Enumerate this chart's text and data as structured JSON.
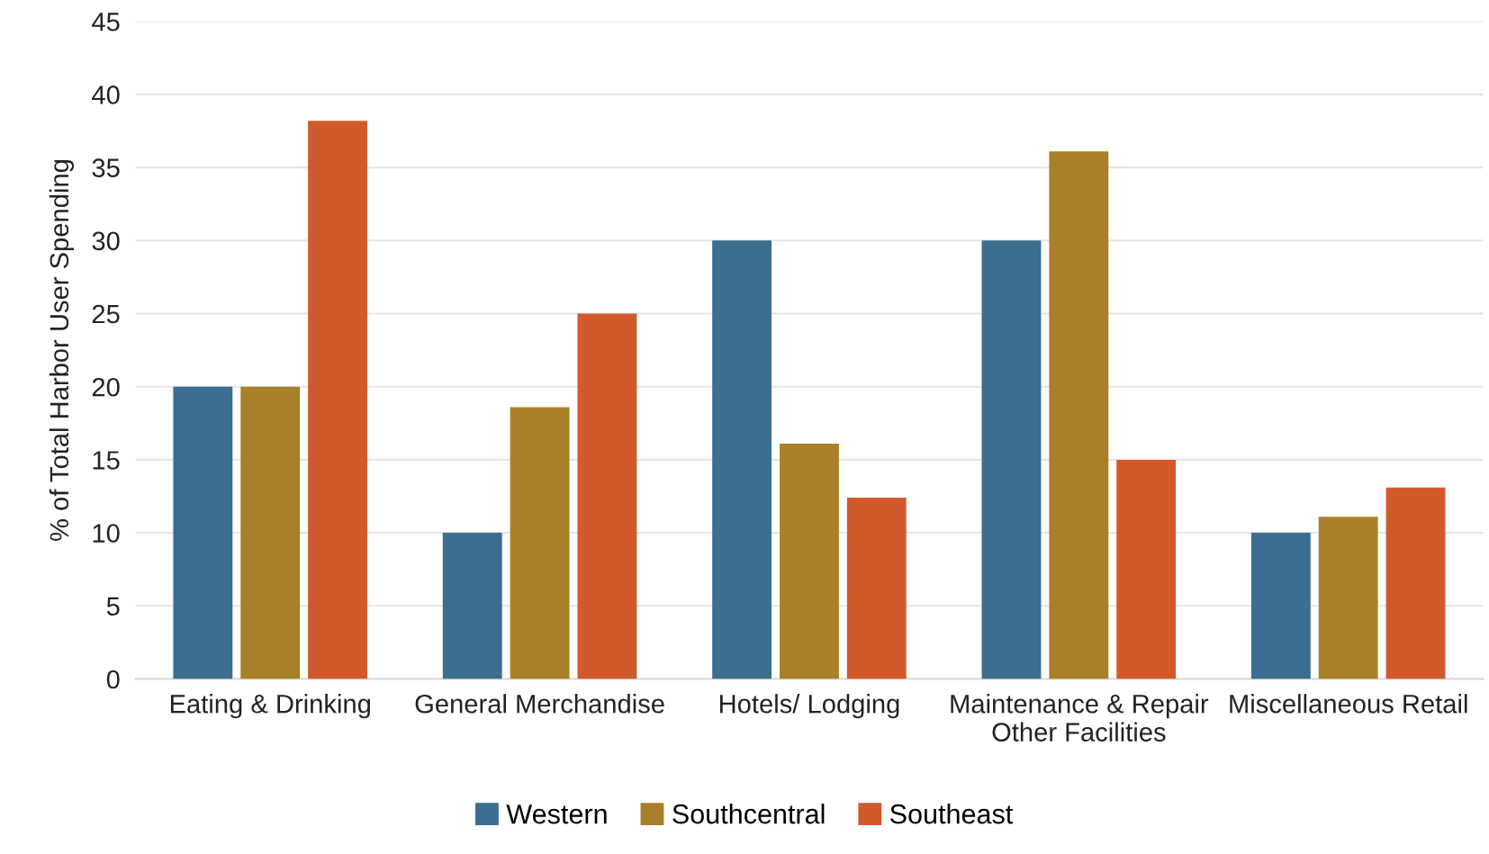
{
  "chart_data": {
    "type": "bar",
    "ylabel": "% of Total Harbor User Spending",
    "categories": [
      "Eating & Drinking",
      "General Merchandise",
      "Hotels/ Lodging",
      "Maintenance & Repair\nOther Facilities",
      "Miscellaneous Retail"
    ],
    "series": [
      {
        "name": "Western",
        "color": "#3b6e8f",
        "values": [
          20,
          10,
          30,
          30,
          10
        ]
      },
      {
        "name": "Southcentral",
        "color": "#a98027",
        "values": [
          20,
          18.6,
          16.1,
          36.1,
          11.1
        ]
      },
      {
        "name": "Southeast",
        "color": "#d25a2a",
        "values": [
          38.2,
          25,
          12.4,
          15,
          13.1
        ]
      }
    ],
    "ylim": [
      0,
      45
    ],
    "yticks": [
      0,
      5,
      10,
      15,
      20,
      25,
      30,
      35,
      40,
      45
    ],
    "grid": "y",
    "legend": "bottom"
  }
}
